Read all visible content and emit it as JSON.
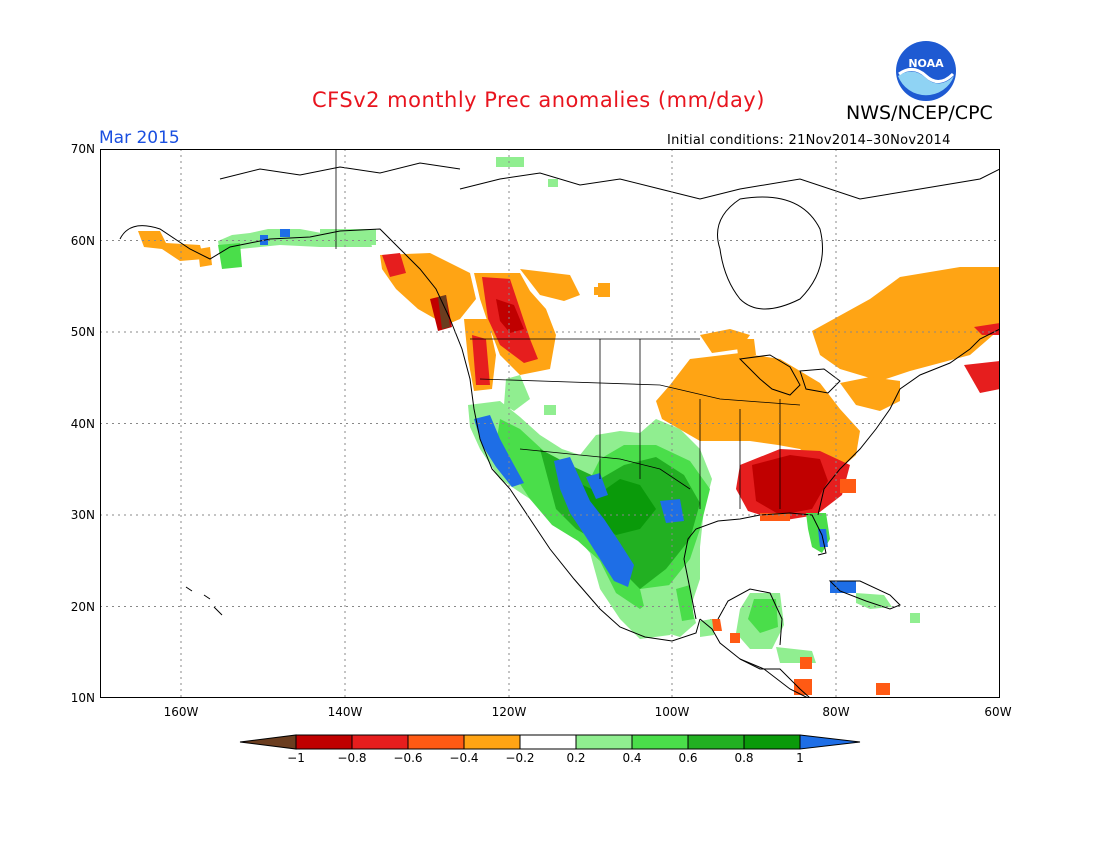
{
  "title": "CFSv2 monthly Prec anomalies (mm/day)",
  "agency": "NWS/NCEP/CPC",
  "logo_text": "NOAA",
  "period": "Mar 2015",
  "init_conditions": "Initial conditions: 21Nov2014–30Nov2014",
  "lat_labels": [
    "70N",
    "60N",
    "50N",
    "40N",
    "30N",
    "20N",
    "10N"
  ],
  "lon_labels": [
    "160W",
    "140W",
    "120W",
    "100W",
    "80W",
    "60W"
  ],
  "colorbar": {
    "labels": [
      "−1",
      "−0.8",
      "−0.6",
      "−0.4",
      "−0.2",
      "0.2",
      "0.4",
      "0.6",
      "0.8",
      "1"
    ],
    "colors": [
      "#6b3d1f",
      "#c00000",
      "#e61e1e",
      "#ff5a14",
      "#ffa414",
      "#ffffff",
      "#90ee90",
      "#4ade4a",
      "#22b022",
      "#0a9a0a",
      "#1e6ee6"
    ]
  }
}
